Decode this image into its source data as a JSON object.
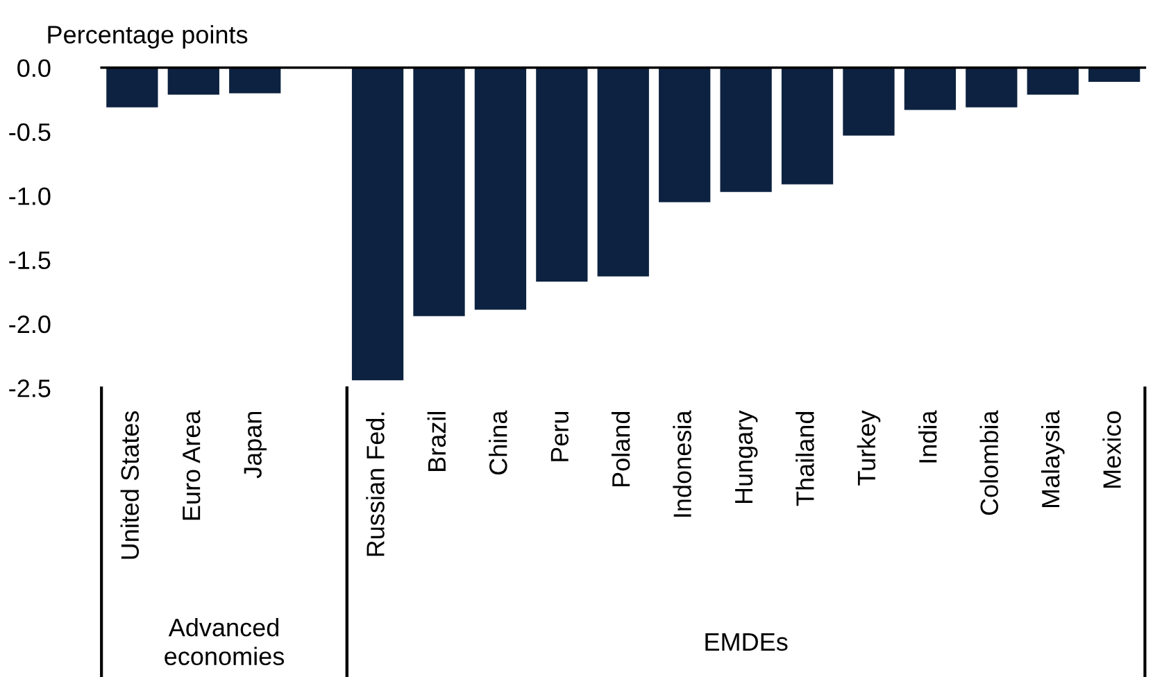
{
  "chart_data": {
    "type": "bar",
    "ylabel": "Percentage points",
    "categories": [
      "United States",
      "Euro Area",
      "Japan",
      null,
      "Russian Fed.",
      "Brazil",
      "China",
      "Peru",
      "Poland",
      "Indonesia",
      "Hungary",
      "Thailand",
      "Turkey",
      "India",
      "Colombia",
      "Malaysia",
      "Mexico"
    ],
    "values": [
      -0.31,
      -0.21,
      -0.2,
      null,
      -2.44,
      -1.94,
      -1.89,
      -1.67,
      -1.63,
      -1.05,
      -0.97,
      -0.91,
      -0.53,
      -0.33,
      -0.31,
      -0.21,
      -0.11
    ],
    "color": "#0d2240",
    "ylim": [
      -2.5,
      0.0
    ],
    "yticks": [
      {
        "value": 0.0,
        "label": "0.0"
      },
      -0.5,
      {
        "value": -1.0,
        "label": "-1.0"
      },
      -1.5,
      {
        "value": -2.0,
        "label": "-2.0"
      },
      -2.5
    ],
    "annotations": [
      "Advanced\neconomies",
      "EMDEs"
    ],
    "grid": false,
    "legend": false
  }
}
